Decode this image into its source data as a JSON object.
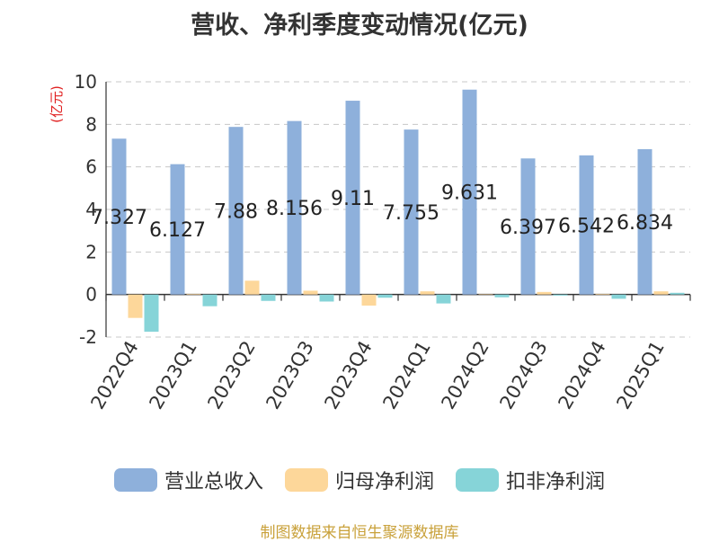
{
  "chart_data": {
    "type": "bar",
    "title": "营收、净利季度变动情况(亿元)",
    "ylabel": "(亿元)",
    "xlabel": "",
    "ylim": [
      -2,
      10
    ],
    "yticks": [
      -2,
      0,
      2,
      4,
      6,
      8,
      10
    ],
    "grid": true,
    "legend_position": "bottom",
    "categories": [
      "2022Q4",
      "2023Q1",
      "2023Q2",
      "2023Q3",
      "2023Q4",
      "2024Q1",
      "2024Q2",
      "2024Q3",
      "2024Q4",
      "2025Q1"
    ],
    "series": [
      {
        "name": "营业总收入",
        "color": "#8eb0db",
        "values": [
          7.327,
          6.127,
          7.88,
          8.156,
          9.11,
          7.755,
          9.631,
          6.397,
          6.542,
          6.834
        ],
        "labels": [
          "7.327",
          "6.127",
          "7.88",
          "8.156",
          "9.11",
          "7.755",
          "9.631",
          "6.397",
          "6.542",
          "6.834"
        ]
      },
      {
        "name": "归母净利润",
        "color": "#fdd79a",
        "values": [
          -1.1,
          0.03,
          0.65,
          0.18,
          -0.52,
          0.15,
          0.02,
          0.12,
          0.03,
          0.15
        ]
      },
      {
        "name": "扣非净利润",
        "color": "#86d4d8",
        "values": [
          -1.75,
          -0.55,
          -0.3,
          -0.33,
          -0.15,
          -0.42,
          -0.13,
          -0.05,
          -0.2,
          0.08
        ]
      }
    ]
  },
  "source": "制图数据来自恒生聚源数据库"
}
